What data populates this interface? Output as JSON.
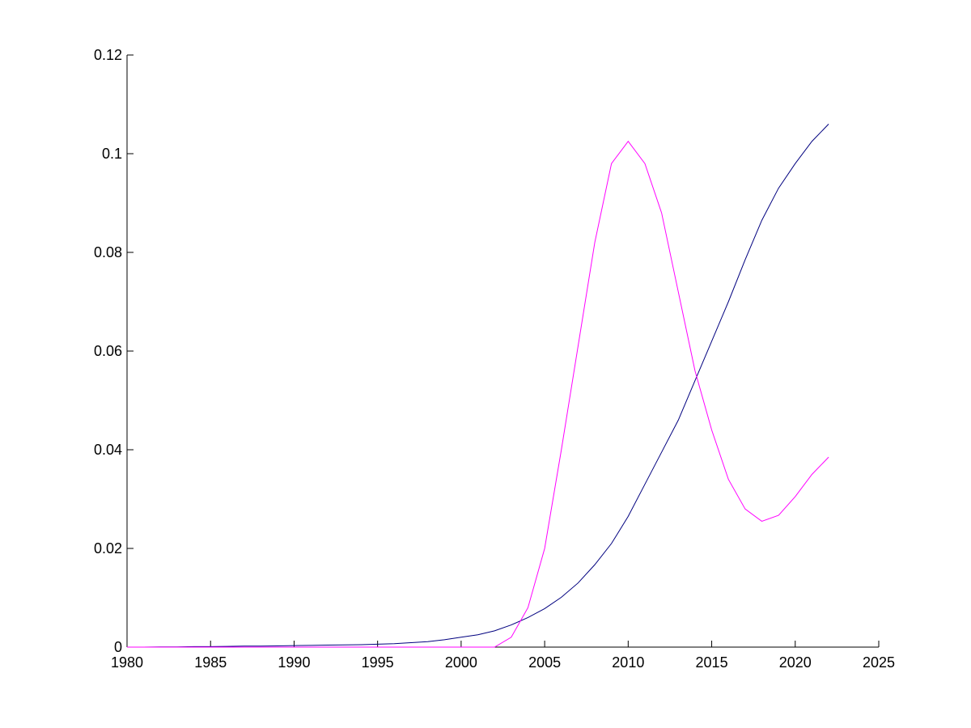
{
  "chart_data": {
    "type": "line",
    "x": [
      1980,
      1981,
      1982,
      1983,
      1984,
      1985,
      1986,
      1987,
      1988,
      1989,
      1990,
      1991,
      1992,
      1993,
      1994,
      1995,
      1996,
      1997,
      1998,
      1999,
      2000,
      2001,
      2002,
      2003,
      2004,
      2005,
      2006,
      2007,
      2008,
      2009,
      2010,
      2011,
      2012,
      2013,
      2014,
      2015,
      2016,
      2017,
      2018,
      2019,
      2020,
      2021,
      2022
    ],
    "series": [
      {
        "color": "#00007f",
        "values": [
          0,
          0,
          5e-05,
          5e-05,
          0.0001,
          0.0001,
          0.00015,
          0.0002,
          0.0002,
          0.00025,
          0.0003,
          0.00035,
          0.0004,
          0.00045,
          0.0005,
          0.0006,
          0.0007,
          0.0009,
          0.0011,
          0.0015,
          0.002,
          0.0025,
          0.0033,
          0.0045,
          0.006,
          0.0078,
          0.0101,
          0.013,
          0.0167,
          0.021,
          0.0265,
          0.033,
          0.0395,
          0.046,
          0.054,
          0.062,
          0.07,
          0.0785,
          0.0865,
          0.093,
          0.098,
          0.1025,
          0.106
        ]
      },
      {
        "color": "#ff00ff",
        "values": [
          0,
          0,
          0,
          0,
          0,
          0,
          0,
          0,
          0,
          0,
          0,
          0,
          0,
          0,
          0,
          0,
          0,
          0,
          0,
          0,
          0,
          0,
          0,
          0.002,
          0.008,
          0.02,
          0.04,
          0.061,
          0.082,
          0.098,
          0.1025,
          0.098,
          0.088,
          0.072,
          0.056,
          0.044,
          0.034,
          0.028,
          0.0255,
          0.0267,
          0.0305,
          0.035,
          0.0385
        ]
      }
    ],
    "xlim": [
      1980,
      2025
    ],
    "xticks": [
      1980,
      1985,
      1990,
      1995,
      2000,
      2005,
      2010,
      2015,
      2020,
      2025
    ],
    "ylim": [
      0,
      0.12
    ],
    "yticks": [
      0,
      0.02,
      0.04,
      0.06,
      0.08,
      0.1,
      0.12
    ],
    "grid": false
  }
}
